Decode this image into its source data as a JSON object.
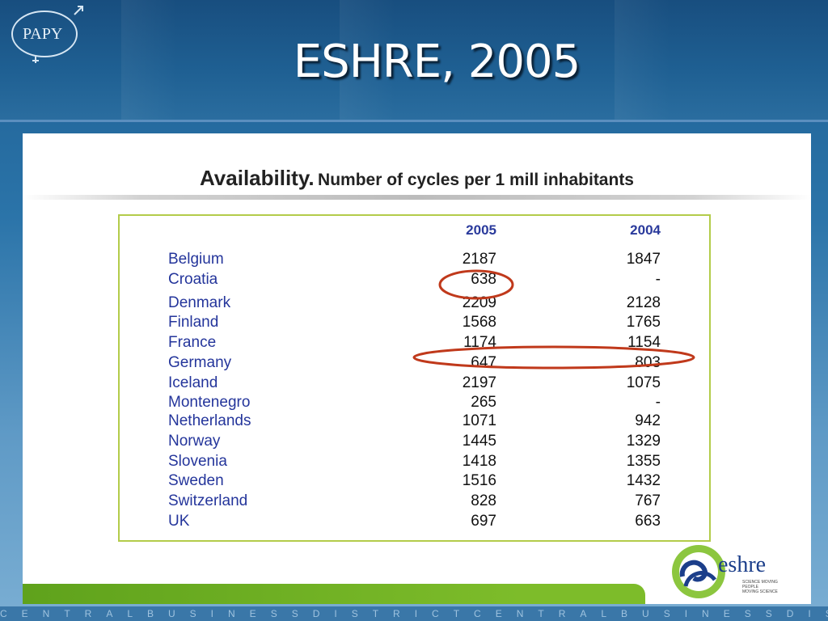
{
  "slide": {
    "title": "ESHRE, 2005",
    "logo_text": "PAPY",
    "footer_ticker": "CENTRALBUSINESSDISTRICTCENTRALBUSINESSDISTRICTCENTRA"
  },
  "card": {
    "heading_bold": "Availability.",
    "heading_rest": "Number of cycles per 1 mill inhabitants"
  },
  "table": {
    "columns": [
      "2005",
      "2004"
    ],
    "rows": [
      {
        "country": "Belgium",
        "v2005": "2187",
        "v2004": "1847"
      },
      {
        "country": "Croatia",
        "v2005": "638",
        "v2004": "-"
      },
      {
        "country": "Denmark",
        "v2005": "2209",
        "v2004": "2128"
      },
      {
        "country": "Finland",
        "v2005": "1568",
        "v2004": "1765"
      },
      {
        "country": "France",
        "v2005": "1174",
        "v2004": "1154"
      },
      {
        "country": "Germany",
        "v2005": "647",
        "v2004": "803"
      },
      {
        "country": "Iceland",
        "v2005": "2197",
        "v2004": "1075"
      },
      {
        "country": "Montenegro",
        "v2005": "265",
        "v2004": "-"
      },
      {
        "country": "Netherlands",
        "v2005": "1071",
        "v2004": "942"
      },
      {
        "country": "Norway",
        "v2005": "1445",
        "v2004": "1329"
      },
      {
        "country": "Slovenia",
        "v2005": "1418",
        "v2004": "1355"
      },
      {
        "country": "Sweden",
        "v2005": "1516",
        "v2004": "1432"
      },
      {
        "country": "Switzerland",
        "v2005": "828",
        "v2004": "767"
      },
      {
        "country": "UK",
        "v2005": "697",
        "v2004": "663"
      }
    ],
    "highlighted": [
      "Croatia 2005",
      "Germany"
    ]
  },
  "eshre": {
    "name": "eshre",
    "tagline_1": "SCIENCE MOVING",
    "tagline_2": "PEOPLE",
    "tagline_3": "MOVING SCIENCE"
  },
  "colors": {
    "country_text": "#24359b",
    "header_text": "#2a3a9c",
    "table_border": "#b3cc4a",
    "highlight_ring": "#c0391b",
    "footer_green": "#6aae22"
  }
}
